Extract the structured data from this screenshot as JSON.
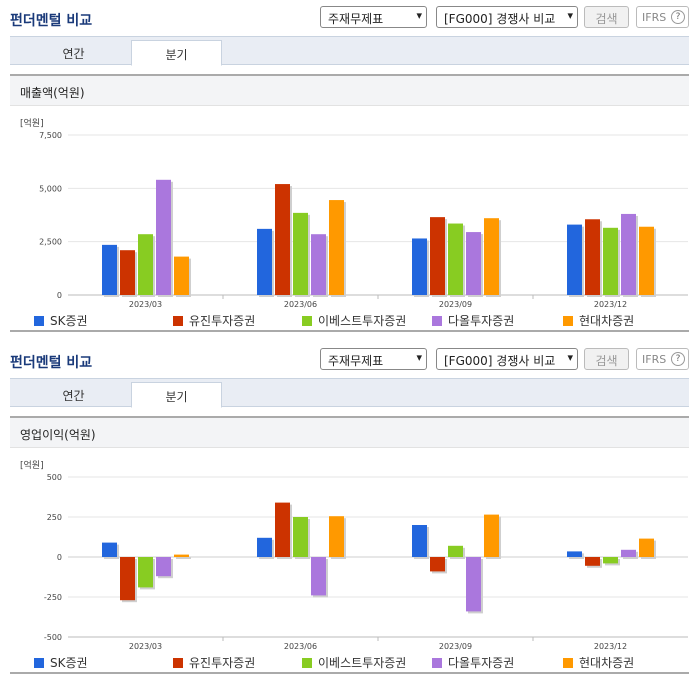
{
  "colors": [
    "#2266dd",
    "#cc3300",
    "#88cc22",
    "#aa77dd",
    "#ff9900"
  ],
  "panels": [
    {
      "title": "펀더멘털 비교",
      "select_statement": "주재무제표",
      "select_compare": "[FG000] 경쟁사 비교",
      "search_label": "검색",
      "ifrs_label": "IFRS",
      "help_icon": "?",
      "tabs": [
        "연간",
        "분기"
      ],
      "active_tab": 1,
      "card_title": "매출액(억원)",
      "unit": "[억원]",
      "legend": [
        "SK증권",
        "유진투자증권",
        "이베스트투자증권",
        "다올투자증권",
        "현대차증권"
      ]
    },
    {
      "title": "펀더멘털 비교",
      "select_statement": "주재무제표",
      "select_compare": "[FG000] 경쟁사 비교",
      "search_label": "검색",
      "ifrs_label": "IFRS",
      "help_icon": "?",
      "tabs": [
        "연간",
        "분기"
      ],
      "active_tab": 1,
      "card_title": "영업이익(억원)",
      "unit": "[억원]",
      "legend": [
        "SK증권",
        "유진투자증권",
        "이베스트투자증권",
        "다올투자증권",
        "현대차증권"
      ]
    }
  ],
  "chart_data": [
    {
      "type": "bar",
      "title": "매출액(억원)",
      "ylabel": "[억원]",
      "categories": [
        "2023/03",
        "2023/06",
        "2023/09",
        "2023/12"
      ],
      "ylim": [
        0,
        7500
      ],
      "yticks": [
        0,
        2500,
        5000,
        7500
      ],
      "ytick_labels": [
        "0",
        "2,500",
        "5,000",
        "7,500"
      ],
      "series": [
        {
          "name": "SK증권",
          "values": [
            2350,
            3100,
            2650,
            3300
          ]
        },
        {
          "name": "유진투자증권",
          "values": [
            2100,
            5200,
            3650,
            3550
          ]
        },
        {
          "name": "이베스트투자증권",
          "values": [
            2850,
            3850,
            3350,
            3150
          ]
        },
        {
          "name": "다올투자증권",
          "values": [
            5400,
            2850,
            2950,
            3800
          ]
        },
        {
          "name": "현대차증권",
          "values": [
            1800,
            4450,
            3600,
            3200
          ]
        }
      ]
    },
    {
      "type": "bar",
      "title": "영업이익(억원)",
      "ylabel": "[억원]",
      "categories": [
        "2023/03",
        "2023/06",
        "2023/09",
        "2023/12"
      ],
      "ylim": [
        -500,
        500
      ],
      "yticks": [
        -500,
        -250,
        0,
        250,
        500
      ],
      "ytick_labels": [
        "-500",
        "-250",
        "0",
        "250",
        "500"
      ],
      "series": [
        {
          "name": "SK증권",
          "values": [
            90,
            120,
            200,
            35
          ]
        },
        {
          "name": "유진투자증권",
          "values": [
            -270,
            340,
            -90,
            -55
          ]
        },
        {
          "name": "이베스트투자증권",
          "values": [
            -190,
            250,
            70,
            -40
          ]
        },
        {
          "name": "다올투자증권",
          "values": [
            -120,
            -240,
            -340,
            45
          ]
        },
        {
          "name": "현대차증권",
          "values": [
            15,
            255,
            265,
            115
          ]
        }
      ]
    }
  ]
}
